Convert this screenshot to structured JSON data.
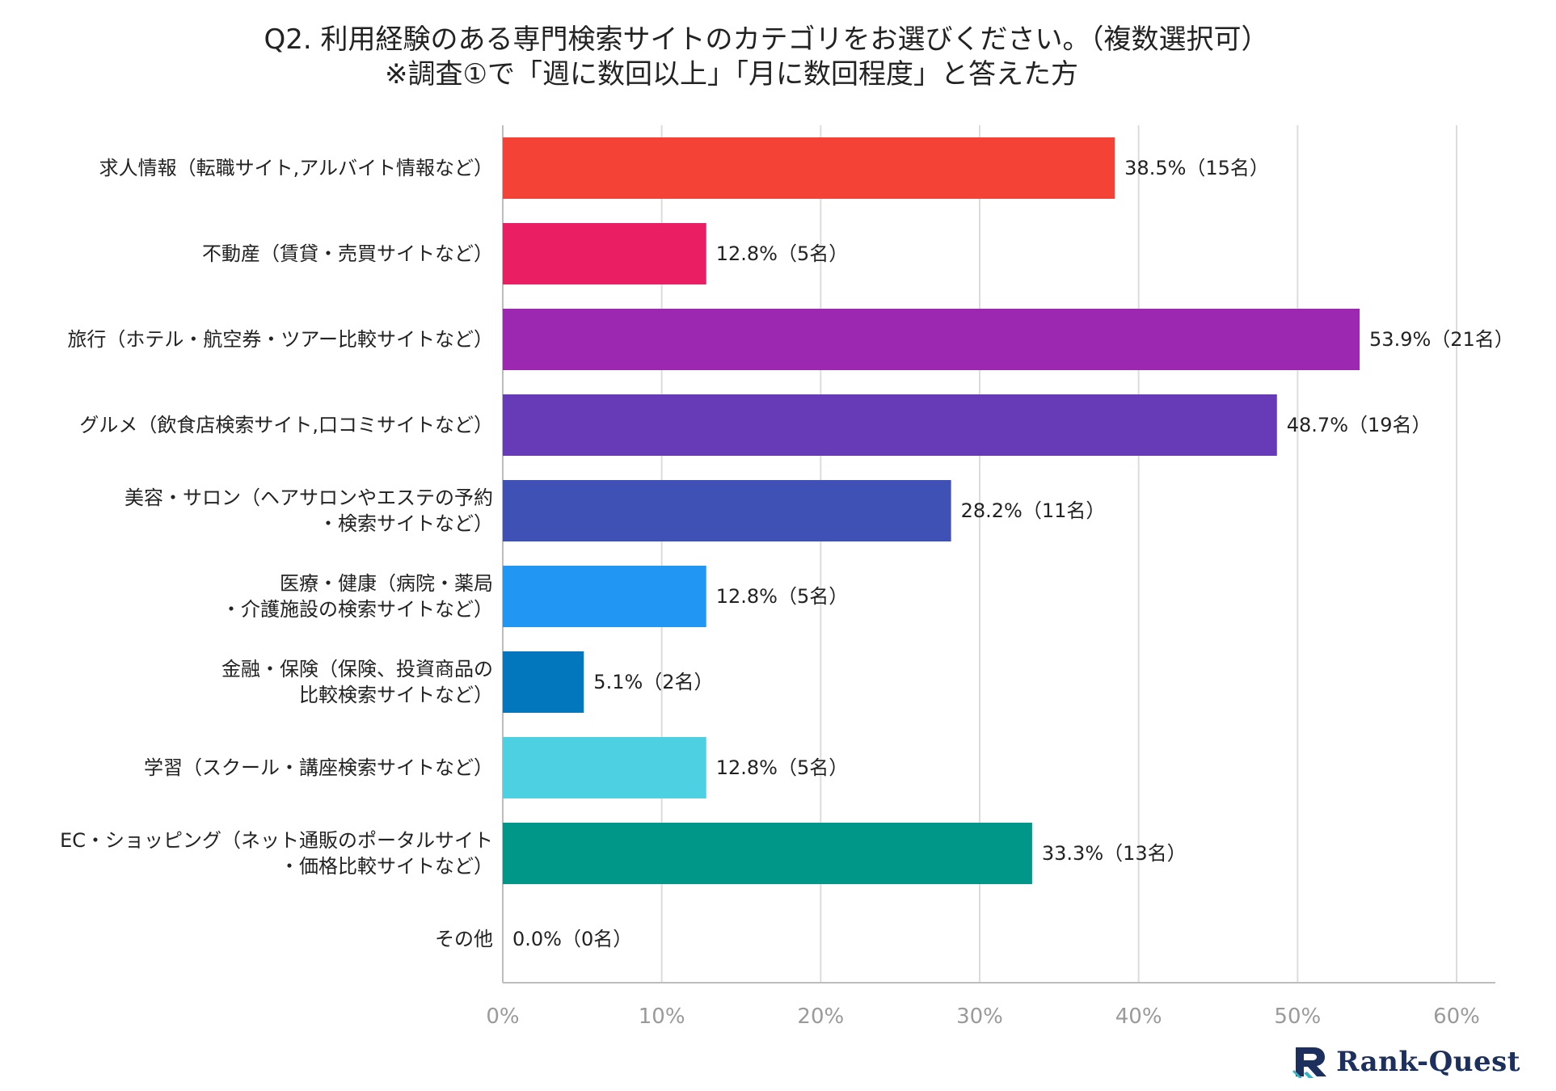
{
  "chart_data": {
    "type": "bar",
    "orientation": "horizontal",
    "title": "Q2. 利用経験のある専門検索サイトのカテゴリをお選びください。（複数選択可）",
    "subtitle": "※調査①で「週に数回以上」「月に数回程度」と答えた方",
    "categories": [
      [
        "求人情報（転職サイト,アルバイト情報など）"
      ],
      [
        "不動産（賃貸・売買サイトなど）"
      ],
      [
        "旅行（ホテル・航空券・ツアー比較サイトなど）"
      ],
      [
        "グルメ（飲食店検索サイト,口コミサイトなど）"
      ],
      [
        "美容・サロン（ヘアサロンやエステの予約",
        "・検索サイトなど）"
      ],
      [
        "医療・健康（病院・薬局",
        "・介護施設の検索サイトなど）"
      ],
      [
        "金融・保険（保険、投資商品の",
        "比較検索サイトなど）"
      ],
      [
        "学習（スクール・講座検索サイトなど）"
      ],
      [
        "EC・ショッピング（ネット通販のポータルサイト",
        "・価格比較サイトなど）"
      ],
      [
        "その他"
      ]
    ],
    "values": [
      38.5,
      12.8,
      53.9,
      48.7,
      28.2,
      12.8,
      5.1,
      12.8,
      33.3,
      0.0
    ],
    "counts": [
      15,
      5,
      21,
      19,
      11,
      5,
      2,
      5,
      13,
      0
    ],
    "value_labels": [
      "38.5%（15名）",
      "12.8%（5名）",
      "53.9%（21名）",
      "48.7%（19名）",
      "28.2%（11名）",
      "12.8%（5名）",
      "5.1%（2名）",
      "12.8%（5名）",
      "33.3%（13名）",
      "0.0%（0名）"
    ],
    "colors": [
      "#f44336",
      "#e91e63",
      "#9c27b0",
      "#673ab7",
      "#3f51b5",
      "#2196f3",
      "#0277bd",
      "#4dd0e1",
      "#009688",
      "#9e9e9e"
    ],
    "xlim": [
      0,
      60
    ],
    "xticks": [
      0,
      10,
      20,
      30,
      40,
      50,
      60
    ],
    "xtick_labels": [
      "0%",
      "10%",
      "20%",
      "30%",
      "40%",
      "50%",
      "60%"
    ],
    "grid": true,
    "legend": "none"
  },
  "brand": {
    "name": "Rank-Quest"
  }
}
